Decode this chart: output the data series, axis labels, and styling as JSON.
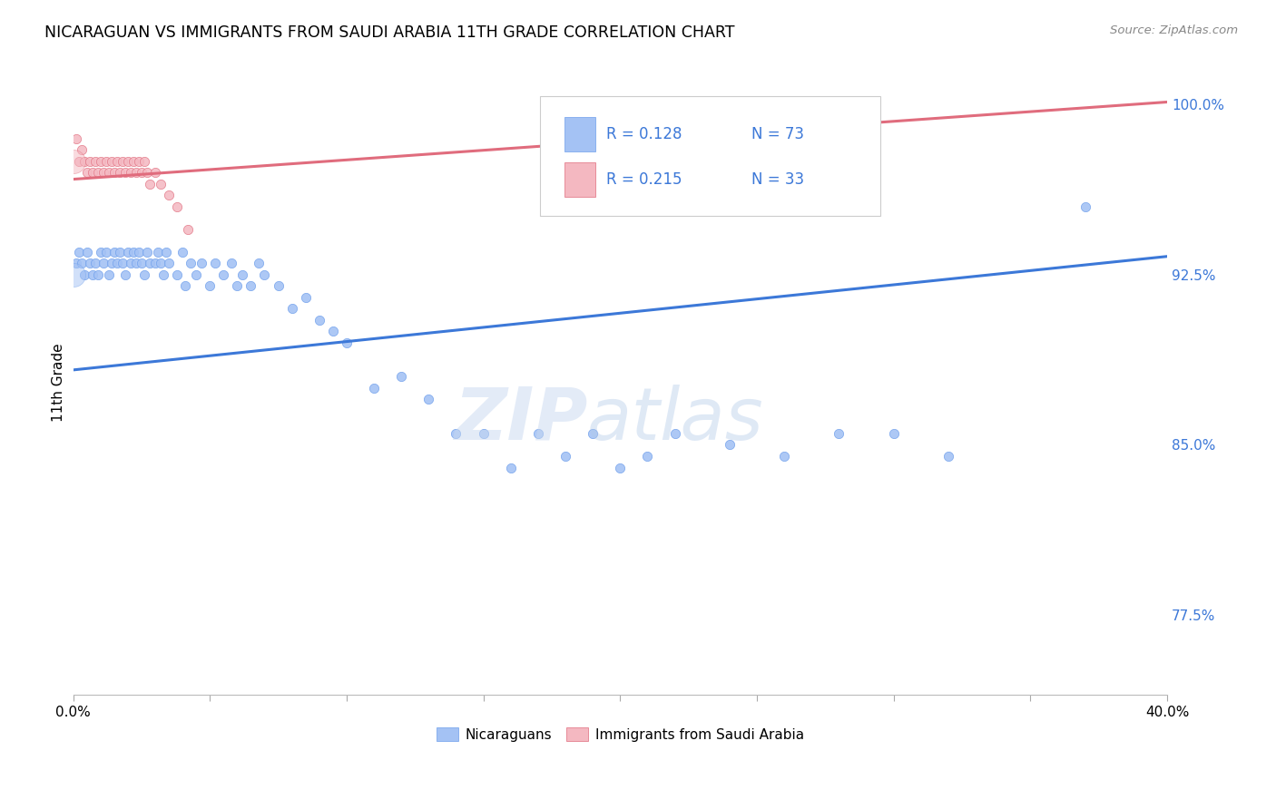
{
  "title": "NICARAGUAN VS IMMIGRANTS FROM SAUDI ARABIA 11TH GRADE CORRELATION CHART",
  "source": "Source: ZipAtlas.com",
  "ylabel": "11th Grade",
  "ylabel_right_labels": [
    "100.0%",
    "92.5%",
    "85.0%",
    "77.5%"
  ],
  "ylabel_right_values": [
    1.0,
    0.925,
    0.85,
    0.775
  ],
  "watermark_zip": "ZIP",
  "watermark_atlas": "atlas",
  "legend_blue_r": "R = 0.128",
  "legend_blue_n": "N = 73",
  "legend_pink_r": "R = 0.215",
  "legend_pink_n": "N = 33",
  "legend_label_blue": "Nicaraguans",
  "legend_label_pink": "Immigrants from Saudi Arabia",
  "blue_color": "#a4c2f4",
  "pink_color": "#f4b8c1",
  "blue_scatter_color": "#6d9eeb",
  "pink_scatter_color": "#e06c7d",
  "blue_line_color": "#3c78d8",
  "pink_line_color": "#cc4455",
  "text_blue": "#3c78d8",
  "blue_scatter_x": [
    0.001,
    0.002,
    0.003,
    0.004,
    0.005,
    0.006,
    0.007,
    0.008,
    0.009,
    0.01,
    0.011,
    0.012,
    0.013,
    0.014,
    0.015,
    0.016,
    0.017,
    0.018,
    0.019,
    0.02,
    0.021,
    0.022,
    0.023,
    0.024,
    0.025,
    0.026,
    0.027,
    0.028,
    0.03,
    0.031,
    0.032,
    0.033,
    0.034,
    0.035,
    0.038,
    0.04,
    0.041,
    0.043,
    0.045,
    0.047,
    0.05,
    0.052,
    0.055,
    0.058,
    0.06,
    0.062,
    0.065,
    0.068,
    0.07,
    0.075,
    0.08,
    0.085,
    0.09,
    0.095,
    0.1,
    0.11,
    0.12,
    0.13,
    0.14,
    0.15,
    0.16,
    0.17,
    0.18,
    0.19,
    0.2,
    0.21,
    0.22,
    0.24,
    0.26,
    0.28,
    0.3,
    0.32,
    0.37
  ],
  "blue_scatter_y": [
    0.93,
    0.935,
    0.93,
    0.925,
    0.935,
    0.93,
    0.925,
    0.93,
    0.925,
    0.935,
    0.93,
    0.935,
    0.925,
    0.93,
    0.935,
    0.93,
    0.935,
    0.93,
    0.925,
    0.935,
    0.93,
    0.935,
    0.93,
    0.935,
    0.93,
    0.925,
    0.935,
    0.93,
    0.93,
    0.935,
    0.93,
    0.925,
    0.935,
    0.93,
    0.925,
    0.935,
    0.92,
    0.93,
    0.925,
    0.93,
    0.92,
    0.93,
    0.925,
    0.93,
    0.92,
    0.925,
    0.92,
    0.93,
    0.925,
    0.92,
    0.91,
    0.915,
    0.905,
    0.9,
    0.895,
    0.875,
    0.88,
    0.87,
    0.855,
    0.855,
    0.84,
    0.855,
    0.845,
    0.855,
    0.84,
    0.845,
    0.855,
    0.85,
    0.845,
    0.855,
    0.855,
    0.845,
    0.955
  ],
  "blue_scatter_large_x": [
    0.0
  ],
  "blue_scatter_large_y": [
    0.925
  ],
  "pink_scatter_x": [
    0.001,
    0.002,
    0.003,
    0.004,
    0.005,
    0.006,
    0.007,
    0.008,
    0.009,
    0.01,
    0.011,
    0.012,
    0.013,
    0.014,
    0.015,
    0.016,
    0.017,
    0.018,
    0.019,
    0.02,
    0.021,
    0.022,
    0.023,
    0.024,
    0.025,
    0.026,
    0.027,
    0.028,
    0.03,
    0.032,
    0.035,
    0.038,
    0.042
  ],
  "pink_scatter_y": [
    0.985,
    0.975,
    0.98,
    0.975,
    0.97,
    0.975,
    0.97,
    0.975,
    0.97,
    0.975,
    0.97,
    0.975,
    0.97,
    0.975,
    0.97,
    0.975,
    0.97,
    0.975,
    0.97,
    0.975,
    0.97,
    0.975,
    0.97,
    0.975,
    0.97,
    0.975,
    0.97,
    0.965,
    0.97,
    0.965,
    0.96,
    0.955,
    0.945
  ],
  "pink_scatter_large_x": [
    0.0
  ],
  "pink_scatter_large_y": [
    0.975
  ],
  "xlim": [
    0.0,
    0.4
  ],
  "ylim": [
    0.74,
    1.015
  ],
  "blue_line_x": [
    0.0,
    0.4
  ],
  "blue_line_y": [
    0.883,
    0.933
  ],
  "pink_line_x": [
    0.0,
    0.4
  ],
  "pink_line_y": [
    0.967,
    1.001
  ],
  "bg_color": "#ffffff",
  "grid_color": "#e0e0e0"
}
